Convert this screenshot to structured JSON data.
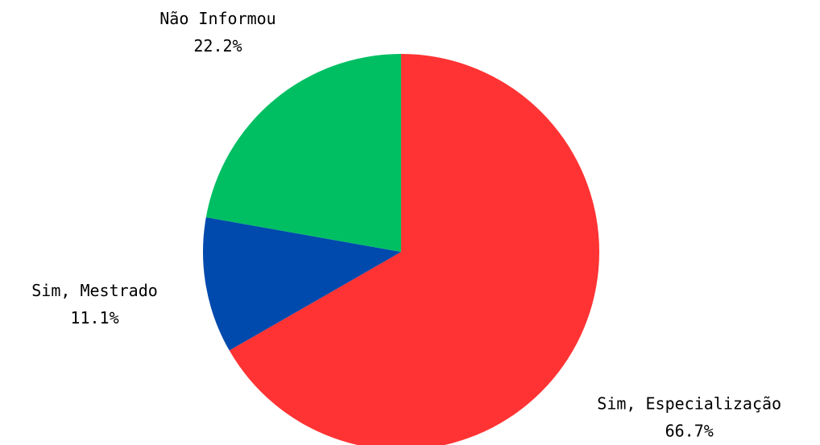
{
  "chart_data": {
    "type": "pie",
    "categories": [
      "Sim, Especialização",
      "Sim, Mestrado",
      "Não Informou"
    ],
    "values": [
      66.7,
      11.1,
      22.2
    ],
    "value_labels": [
      "66.7%",
      "11.1%",
      "22.2%"
    ],
    "colors": [
      "#ff3333",
      "#004aad",
      "#00bf63"
    ]
  }
}
